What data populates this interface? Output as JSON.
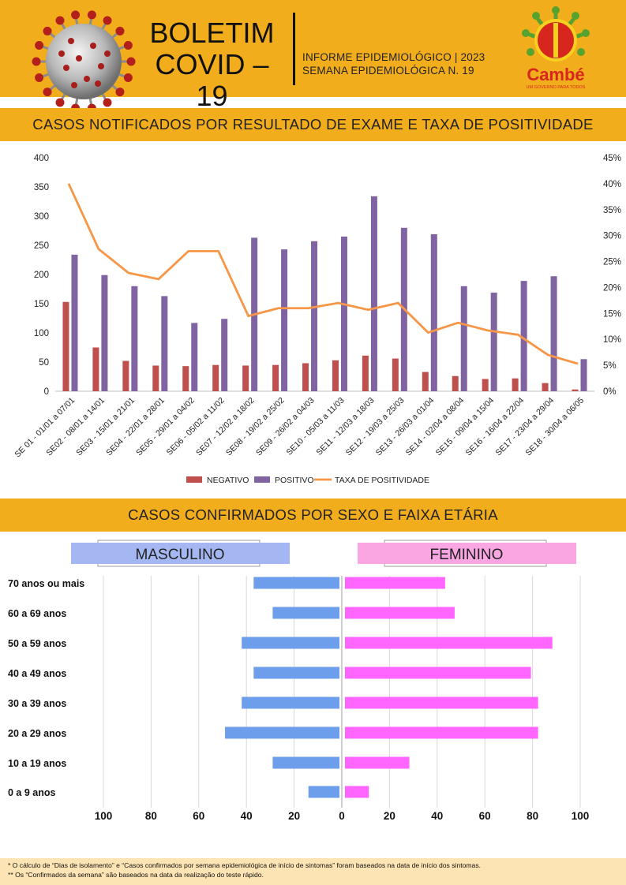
{
  "header": {
    "title_line1": "BOLETIM",
    "title_line2": "COVID – 19",
    "subtitle_line1": "INFORME EPIDEMIOLÓGICO | 2023",
    "subtitle_line2": "SEMANA EPIDEMIOLÓGICA  N. 19",
    "logo_text": "Cambé",
    "logo_tagline": "UM GOVERNO PARA TODOS",
    "colors": {
      "band": "#f2ad1c",
      "logo_red": "#d7261e",
      "logo_green": "#58a22f",
      "logo_yellow": "#f7d11e"
    }
  },
  "section1": {
    "title": "CASOS NOTIFICADOS POR RESULTADO DE EXAME E TAXA DE POSITIVIDADE"
  },
  "section2": {
    "title": "CASOS CONFIRMADOS POR SEXO E FAIXA ETÁRIA"
  },
  "chart_data": [
    {
      "type": "bar",
      "title": "",
      "categories": [
        "SE 01 - 01/01 a 07/01",
        "SE02 - 08/01 a 14/01",
        "SE03 - 15/01 a 21/01",
        "SE04 - 22/01 a 28/01",
        "SE05 - 29/01 a 04/02",
        "SE06 - 05/02 a 11/02",
        "SE07 - 12/02 a 18/02",
        "SE08 - 19/02 a 25/02",
        "SE09 - 26/02 a 04/03",
        "SE10 - 05/03 a 11/03",
        "SE11 - 12/03 a 18/03",
        "SE12 - 19/03 a 25/03",
        "SE13 - 26/03 a 01/04",
        "SE14 - 02/04 a 08/04",
        "SE15 - 09/04 a 15/04",
        "SE16 - 16/04 a 22/04",
        "SE17 - 23/04 a 29/04",
        "SE18 - 30/04 a 06/05"
      ],
      "series": [
        {
          "name": "NEGATIVO",
          "color": "#c0504d",
          "values": [
            153,
            75,
            52,
            44,
            43,
            45,
            44,
            45,
            48,
            53,
            61,
            56,
            33,
            26,
            21,
            22,
            14,
            3
          ]
        },
        {
          "name": "POSITIVO",
          "color": "#8064a2",
          "values": [
            234,
            199,
            180,
            163,
            117,
            124,
            263,
            243,
            257,
            265,
            334,
            280,
            269,
            180,
            169,
            189,
            197,
            55
          ]
        },
        {
          "name": "TAXA DE POSITIVIDADE",
          "color": "#f79646",
          "type": "line",
          "axis": "right",
          "values": [
            40.0,
            27.4,
            22.8,
            21.6,
            27.0,
            27.0,
            14.5,
            16.0,
            16.0,
            17.0,
            15.7,
            17.0,
            11.3,
            13.2,
            11.7,
            10.9,
            7.0,
            5.3
          ]
        }
      ],
      "ylim": [
        0,
        400
      ],
      "yticks": [
        0,
        50,
        100,
        150,
        200,
        250,
        300,
        350,
        400
      ],
      "y2lim": [
        0,
        45
      ],
      "y2ticks": [
        "0%",
        "5%",
        "10%",
        "15%",
        "20%",
        "25%",
        "30%",
        "35%",
        "40%",
        "45%"
      ],
      "grid": false,
      "legend": "bottom"
    },
    {
      "type": "bar",
      "orientation": "horizontal",
      "title": "",
      "categories": [
        "70 anos ou mais",
        "60 a 69 anos",
        "50 a 59 anos",
        "40 a 49 anos",
        "30 a 39 anos",
        "20 a 29 anos",
        "10 a 19 anos",
        "0 a 9 anos"
      ],
      "series": [
        {
          "name": "MASCULINO",
          "color": "#6d9eeb",
          "values": [
            36,
            28,
            41,
            36,
            41,
            48,
            28,
            13
          ]
        },
        {
          "name": "FEMININO",
          "color": "#ff66ff",
          "values": [
            42,
            46,
            87,
            78,
            81,
            81,
            27,
            10
          ]
        }
      ],
      "xticks": [
        "100",
        "80",
        "60",
        "40",
        "20",
        "0",
        "20",
        "40",
        "60",
        "80",
        "100"
      ],
      "xlim": [
        -100,
        100
      ],
      "grid": true,
      "legend": "top"
    }
  ],
  "footer": {
    "note1": "* O cálculo de “Dias de isolamento” e “Casos confirmados por semana epidemiológica de início de sintomas” foram baseados na data de início dos sintomas.",
    "note2": "** Os “Confirmados da semana” são baseados na data da realização do teste rápido."
  }
}
